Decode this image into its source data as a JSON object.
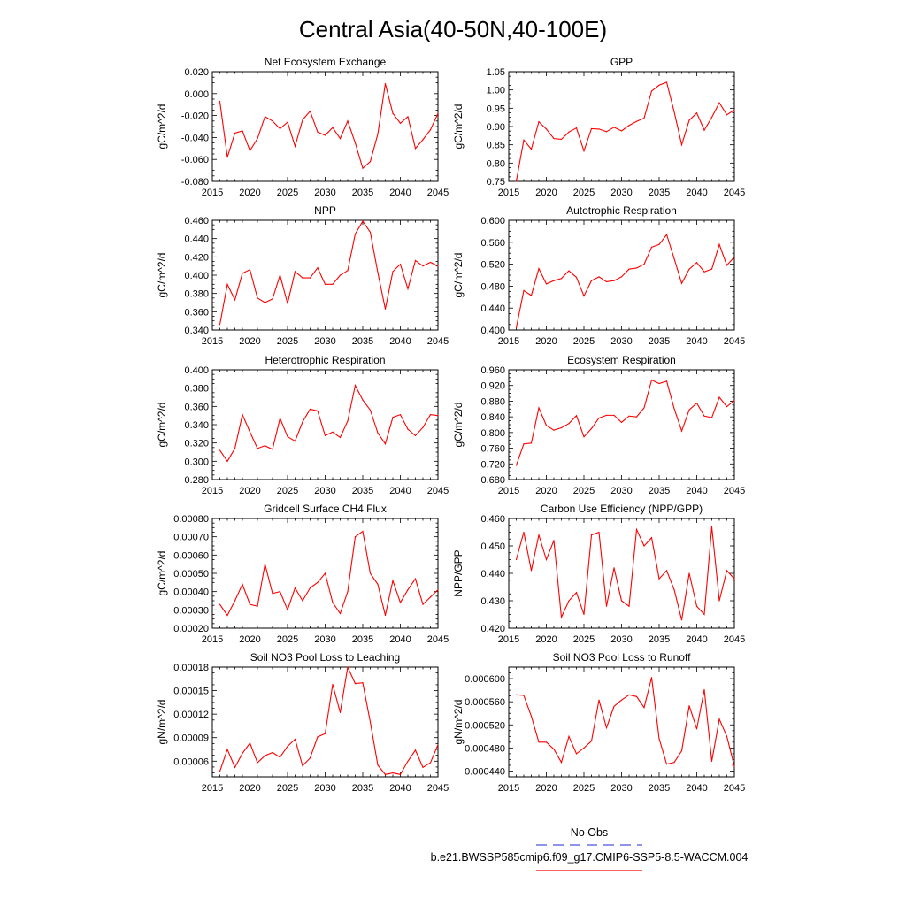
{
  "page_title": "Central Asia(40-50N,40-100E)",
  "colors": {
    "model_line": "#ff0000",
    "obs_line": "#4a56d6",
    "axis": "#000000"
  },
  "legend": {
    "entries": [
      {
        "label": "No Obs",
        "color": "#4a56d6",
        "style": "dashed"
      },
      {
        "label": "b.e21.BWSSP585cmip6.f09_g17.CMIP6-SSP5-8.5-WACCM.004",
        "color": "#ff0000",
        "style": "solid"
      }
    ]
  },
  "chart_data": [
    {
      "type": "line",
      "title": "Net Ecosystem Exchange",
      "xlabel": "",
      "ylabel": "gC/m^2/d",
      "xlim": [
        2015,
        2045
      ],
      "ylim": [
        -0.08,
        0.02
      ],
      "xticks": [
        2015,
        2020,
        2025,
        2030,
        2035,
        2040,
        2045
      ],
      "yticks": [
        -0.08,
        -0.06,
        -0.04,
        -0.02,
        0.0,
        0.02
      ],
      "ytick_labels": [
        "-0.080",
        "-0.060",
        "-0.040",
        "-0.020",
        "0.000",
        "0.020"
      ],
      "x": [
        2016,
        2017,
        2018,
        2019,
        2020,
        2021,
        2022,
        2023,
        2024,
        2025,
        2026,
        2027,
        2028,
        2029,
        2030,
        2031,
        2032,
        2033,
        2034,
        2035,
        2036,
        2037,
        2038,
        2039,
        2040,
        2041,
        2042,
        2043,
        2044,
        2045
      ],
      "values": [
        -0.007,
        -0.058,
        -0.036,
        -0.034,
        -0.052,
        -0.041,
        -0.021,
        -0.025,
        -0.032,
        -0.026,
        -0.048,
        -0.024,
        -0.016,
        -0.035,
        -0.038,
        -0.031,
        -0.041,
        -0.025,
        -0.045,
        -0.068,
        -0.062,
        -0.037,
        0.009,
        -0.018,
        -0.027,
        -0.021,
        -0.05,
        -0.042,
        -0.033,
        -0.018
      ]
    },
    {
      "type": "line",
      "title": "GPP",
      "xlabel": "",
      "ylabel": "gC/m^2/d",
      "xlim": [
        2015,
        2045
      ],
      "ylim": [
        0.75,
        1.05
      ],
      "xticks": [
        2015,
        2020,
        2025,
        2030,
        2035,
        2040,
        2045
      ],
      "yticks": [
        0.75,
        0.8,
        0.85,
        0.9,
        0.95,
        1.0,
        1.05
      ],
      "ytick_labels": [
        "0.75",
        "0.80",
        "0.85",
        "0.90",
        "0.95",
        "1.00",
        "1.05"
      ],
      "x": [
        2016,
        2017,
        2018,
        2019,
        2020,
        2021,
        2022,
        2023,
        2024,
        2025,
        2026,
        2027,
        2028,
        2029,
        2030,
        2031,
        2032,
        2033,
        2034,
        2035,
        2036,
        2037,
        2038,
        2039,
        2040,
        2041,
        2042,
        2043,
        2044,
        2045
      ],
      "values": [
        0.75,
        0.863,
        0.838,
        0.913,
        0.893,
        0.867,
        0.865,
        0.885,
        0.896,
        0.833,
        0.894,
        0.893,
        0.886,
        0.898,
        0.888,
        0.903,
        0.914,
        0.923,
        0.997,
        1.013,
        1.021,
        0.94,
        0.85,
        0.917,
        0.937,
        0.89,
        0.925,
        0.965,
        0.932,
        0.945
      ]
    },
    {
      "type": "line",
      "title": "NPP",
      "xlabel": "",
      "ylabel": "gC/m^2/d",
      "xlim": [
        2015,
        2045
      ],
      "ylim": [
        0.34,
        0.46
      ],
      "xticks": [
        2015,
        2020,
        2025,
        2030,
        2035,
        2040,
        2045
      ],
      "yticks": [
        0.34,
        0.36,
        0.38,
        0.4,
        0.42,
        0.44,
        0.46
      ],
      "ytick_labels": [
        "0.340",
        "0.360",
        "0.380",
        "0.400",
        "0.420",
        "0.440",
        "0.460"
      ],
      "x": [
        2016,
        2017,
        2018,
        2019,
        2020,
        2021,
        2022,
        2023,
        2024,
        2025,
        2026,
        2027,
        2028,
        2029,
        2030,
        2031,
        2032,
        2033,
        2034,
        2035,
        2036,
        2037,
        2038,
        2039,
        2040,
        2041,
        2042,
        2043,
        2044,
        2045
      ],
      "values": [
        0.346,
        0.39,
        0.373,
        0.402,
        0.406,
        0.375,
        0.37,
        0.374,
        0.4,
        0.369,
        0.404,
        0.397,
        0.397,
        0.408,
        0.39,
        0.39,
        0.4,
        0.405,
        0.445,
        0.459,
        0.447,
        0.403,
        0.363,
        0.404,
        0.412,
        0.385,
        0.416,
        0.41,
        0.414,
        0.41
      ]
    },
    {
      "type": "line",
      "title": "Autotrophic Respiration",
      "xlabel": "",
      "ylabel": "gC/m^2/d",
      "xlim": [
        2015,
        2045
      ],
      "ylim": [
        0.4,
        0.6
      ],
      "xticks": [
        2015,
        2020,
        2025,
        2030,
        2035,
        2040,
        2045
      ],
      "yticks": [
        0.4,
        0.44,
        0.48,
        0.52,
        0.56,
        0.6
      ],
      "ytick_labels": [
        "0.400",
        "0.440",
        "0.480",
        "0.520",
        "0.560",
        "0.600"
      ],
      "x": [
        2016,
        2017,
        2018,
        2019,
        2020,
        2021,
        2022,
        2023,
        2024,
        2025,
        2026,
        2027,
        2028,
        2029,
        2030,
        2031,
        2032,
        2033,
        2034,
        2035,
        2036,
        2037,
        2038,
        2039,
        2040,
        2041,
        2042,
        2043,
        2044,
        2045
      ],
      "values": [
        0.404,
        0.472,
        0.463,
        0.512,
        0.484,
        0.49,
        0.494,
        0.508,
        0.496,
        0.462,
        0.49,
        0.497,
        0.488,
        0.49,
        0.497,
        0.511,
        0.513,
        0.52,
        0.551,
        0.556,
        0.574,
        0.53,
        0.485,
        0.511,
        0.523,
        0.506,
        0.511,
        0.556,
        0.518,
        0.533
      ]
    },
    {
      "type": "line",
      "title": "Heterotrophic Respiration",
      "xlabel": "",
      "ylabel": "gC/m^2/d",
      "xlim": [
        2015,
        2045
      ],
      "ylim": [
        0.28,
        0.4
      ],
      "xticks": [
        2015,
        2020,
        2025,
        2030,
        2035,
        2040,
        2045
      ],
      "yticks": [
        0.28,
        0.3,
        0.32,
        0.34,
        0.36,
        0.38,
        0.4
      ],
      "ytick_labels": [
        "0.280",
        "0.300",
        "0.320",
        "0.340",
        "0.360",
        "0.380",
        "0.400"
      ],
      "x": [
        2016,
        2017,
        2018,
        2019,
        2020,
        2021,
        2022,
        2023,
        2024,
        2025,
        2026,
        2027,
        2028,
        2029,
        2030,
        2031,
        2032,
        2033,
        2034,
        2035,
        2036,
        2037,
        2038,
        2039,
        2040,
        2041,
        2042,
        2043,
        2044,
        2045
      ],
      "values": [
        0.312,
        0.3,
        0.314,
        0.351,
        0.332,
        0.314,
        0.317,
        0.313,
        0.347,
        0.327,
        0.322,
        0.343,
        0.357,
        0.355,
        0.328,
        0.332,
        0.326,
        0.344,
        0.383,
        0.367,
        0.356,
        0.331,
        0.319,
        0.348,
        0.351,
        0.335,
        0.328,
        0.337,
        0.351,
        0.35
      ]
    },
    {
      "type": "line",
      "title": "Ecosystem Respiration",
      "xlabel": "",
      "ylabel": "gC/m^2/d",
      "xlim": [
        2015,
        2045
      ],
      "ylim": [
        0.68,
        0.96
      ],
      "xticks": [
        2015,
        2020,
        2025,
        2030,
        2035,
        2040,
        2045
      ],
      "yticks": [
        0.68,
        0.72,
        0.76,
        0.8,
        0.84,
        0.88,
        0.92,
        0.96
      ],
      "ytick_labels": [
        "0.680",
        "0.720",
        "0.760",
        "0.800",
        "0.840",
        "0.880",
        "0.920",
        "0.960"
      ],
      "x": [
        2016,
        2017,
        2018,
        2019,
        2020,
        2021,
        2022,
        2023,
        2024,
        2025,
        2026,
        2027,
        2028,
        2029,
        2030,
        2031,
        2032,
        2033,
        2034,
        2035,
        2036,
        2037,
        2038,
        2039,
        2040,
        2041,
        2042,
        2043,
        2044,
        2045
      ],
      "values": [
        0.716,
        0.771,
        0.773,
        0.863,
        0.818,
        0.806,
        0.812,
        0.823,
        0.843,
        0.789,
        0.81,
        0.837,
        0.844,
        0.844,
        0.826,
        0.842,
        0.84,
        0.863,
        0.934,
        0.925,
        0.931,
        0.861,
        0.804,
        0.858,
        0.875,
        0.842,
        0.838,
        0.89,
        0.866,
        0.882
      ]
    },
    {
      "type": "line",
      "title": "Gridcell Surface CH4 Flux",
      "xlabel": "",
      "ylabel": "gC/m^2/d",
      "xlim": [
        2015,
        2045
      ],
      "ylim": [
        0.0002,
        0.0008
      ],
      "xticks": [
        2015,
        2020,
        2025,
        2030,
        2035,
        2040,
        2045
      ],
      "yticks": [
        0.0002,
        0.0003,
        0.0004,
        0.0005,
        0.0006,
        0.0007,
        0.0008
      ],
      "ytick_labels": [
        "0.00020",
        "0.00030",
        "0.00040",
        "0.00050",
        "0.00060",
        "0.00070",
        "0.00080"
      ],
      "x": [
        2016,
        2017,
        2018,
        2019,
        2020,
        2021,
        2022,
        2023,
        2024,
        2025,
        2026,
        2027,
        2028,
        2029,
        2030,
        2031,
        2032,
        2033,
        2034,
        2035,
        2036,
        2037,
        2038,
        2039,
        2040,
        2041,
        2042,
        2043,
        2044,
        2045
      ],
      "values": [
        0.00033,
        0.00027,
        0.00035,
        0.00044,
        0.00033,
        0.00032,
        0.00055,
        0.00039,
        0.0004,
        0.0003,
        0.00042,
        0.00035,
        0.00042,
        0.00045,
        0.0005,
        0.00034,
        0.00028,
        0.0004,
        0.0007,
        0.00073,
        0.0005,
        0.00044,
        0.00027,
        0.00046,
        0.00034,
        0.00041,
        0.00047,
        0.00033,
        0.00037,
        0.00041
      ]
    },
    {
      "type": "line",
      "title": "Carbon Use Efficiency (NPP/GPP)",
      "xlabel": "",
      "ylabel": "NPP/GPP",
      "xlim": [
        2015,
        2045
      ],
      "ylim": [
        0.42,
        0.46
      ],
      "xticks": [
        2015,
        2020,
        2025,
        2030,
        2035,
        2040,
        2045
      ],
      "yticks": [
        0.42,
        0.43,
        0.44,
        0.45,
        0.46
      ],
      "ytick_labels": [
        "0.420",
        "0.430",
        "0.440",
        "0.450",
        "0.460"
      ],
      "x": [
        2016,
        2017,
        2018,
        2019,
        2020,
        2021,
        2022,
        2023,
        2024,
        2025,
        2026,
        2027,
        2028,
        2029,
        2030,
        2031,
        2032,
        2033,
        2034,
        2035,
        2036,
        2037,
        2038,
        2039,
        2040,
        2041,
        2042,
        2043,
        2044,
        2045
      ],
      "values": [
        0.445,
        0.455,
        0.441,
        0.454,
        0.445,
        0.452,
        0.424,
        0.43,
        0.433,
        0.425,
        0.454,
        0.455,
        0.428,
        0.442,
        0.43,
        0.428,
        0.456,
        0.45,
        0.453,
        0.438,
        0.441,
        0.434,
        0.423,
        0.44,
        0.428,
        0.425,
        0.457,
        0.43,
        0.441,
        0.438
      ]
    },
    {
      "type": "line",
      "title": "Soil NO3 Pool Loss to Leaching",
      "xlabel": "",
      "ylabel": "gN/m^2/d",
      "xlim": [
        2015,
        2045
      ],
      "ylim": [
        4e-05,
        0.00018
      ],
      "xticks": [
        2015,
        2020,
        2025,
        2030,
        2035,
        2040,
        2045
      ],
      "yticks": [
        6e-05,
        9e-05,
        0.00012,
        0.00015,
        0.00018
      ],
      "ytick_labels": [
        "0.00006",
        "0.00009",
        "0.00012",
        "0.00015",
        "0.00018"
      ],
      "x": [
        2016,
        2017,
        2018,
        2019,
        2020,
        2021,
        2022,
        2023,
        2024,
        2025,
        2026,
        2027,
        2028,
        2029,
        2030,
        2031,
        2032,
        2033,
        2034,
        2035,
        2036,
        2037,
        2038,
        2039,
        2040,
        2041,
        2042,
        2043,
        2044,
        2045
      ],
      "values": [
        4.7e-05,
        7.5e-05,
        5.2e-05,
        7e-05,
        8.3e-05,
        5.8e-05,
        6.7e-05,
        7.1e-05,
        6.5e-05,
        7.9e-05,
        8.8e-05,
        5.4e-05,
        6.4e-05,
        9.1e-05,
        9.5e-05,
        0.000158,
        0.000122,
        0.00018,
        0.000159,
        0.00016,
        0.00011,
        5.5e-05,
        4.3e-05,
        4.5e-05,
        4.3e-05,
        6e-05,
        7.4e-05,
        5.2e-05,
        5.8e-05,
        8.1e-05
      ]
    },
    {
      "type": "line",
      "title": "Soil NO3 Pool Loss to Runoff",
      "xlabel": "",
      "ylabel": "gN/m^2/d",
      "xlim": [
        2015,
        2045
      ],
      "ylim": [
        0.00043,
        0.00062
      ],
      "xticks": [
        2015,
        2020,
        2025,
        2030,
        2035,
        2040,
        2045
      ],
      "yticks": [
        0.00044,
        0.00048,
        0.00052,
        0.00056,
        0.0006
      ],
      "ytick_labels": [
        "0.000440",
        "0.000480",
        "0.000520",
        "0.000560",
        "0.000600"
      ],
      "x": [
        2016,
        2017,
        2018,
        2019,
        2020,
        2021,
        2022,
        2023,
        2024,
        2025,
        2026,
        2027,
        2028,
        2029,
        2030,
        2031,
        2032,
        2033,
        2034,
        2035,
        2036,
        2037,
        2038,
        2039,
        2040,
        2041,
        2042,
        2043,
        2044,
        2045
      ],
      "values": [
        0.000572,
        0.000571,
        0.000535,
        0.00049,
        0.00049,
        0.000478,
        0.000455,
        0.0005,
        0.00047,
        0.00048,
        0.000492,
        0.000563,
        0.000515,
        0.000552,
        0.000563,
        0.000572,
        0.000569,
        0.00055,
        0.000602,
        0.000496,
        0.000452,
        0.000455,
        0.000475,
        0.000553,
        0.000513,
        0.000581,
        0.000457,
        0.00053,
        0.0005,
        0.000448
      ]
    }
  ]
}
